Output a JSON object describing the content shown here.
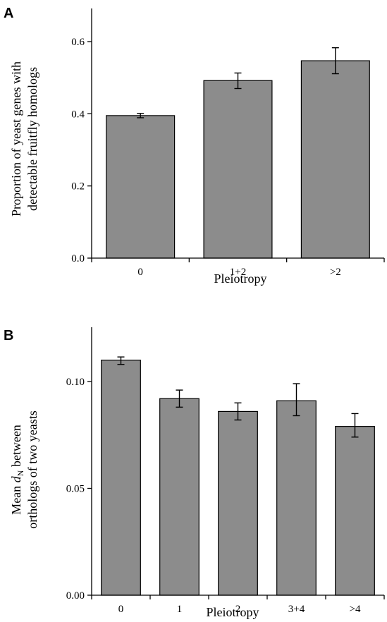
{
  "chart_data": [
    {
      "type": "bar",
      "panel": "A",
      "categories": [
        "0",
        "1+2",
        ">2"
      ],
      "values": [
        0.395,
        0.492,
        0.547
      ],
      "errors": [
        [
          0.389,
          0.401
        ],
        [
          0.47,
          0.513
        ],
        [
          0.511,
          0.583
        ]
      ],
      "ylim": [
        0,
        0.6
      ],
      "yticks": [
        "0.0",
        "0.2",
        "0.4",
        "0.6"
      ],
      "ylabel_lines": [
        "Proportion of yeast genes with",
        "detectable fruitfly homologs"
      ],
      "xlabel": "Pleiotropy",
      "grid": false
    },
    {
      "type": "bar",
      "panel": "B",
      "categories": [
        "0",
        "1",
        "2",
        "3+4",
        ">4"
      ],
      "values": [
        0.11,
        0.092,
        0.086,
        0.091,
        0.079
      ],
      "errors": [
        [
          0.108,
          0.1115
        ],
        [
          0.088,
          0.096
        ],
        [
          0.082,
          0.09
        ],
        [
          0.084,
          0.099
        ],
        [
          0.074,
          0.085
        ]
      ],
      "ylim": [
        0,
        0.1
      ],
      "yticks": [
        "0.00",
        "0.05",
        "0.10"
      ],
      "ylabel_line1_prefix": "Mean ",
      "ylabel_line1_var": "d",
      "ylabel_line1_sub": "N",
      "ylabel_line1_suffix": " between",
      "ylabel_line2": "orthologs of two yeasts",
      "xlabel": "Pleiotropy",
      "grid": false
    }
  ]
}
